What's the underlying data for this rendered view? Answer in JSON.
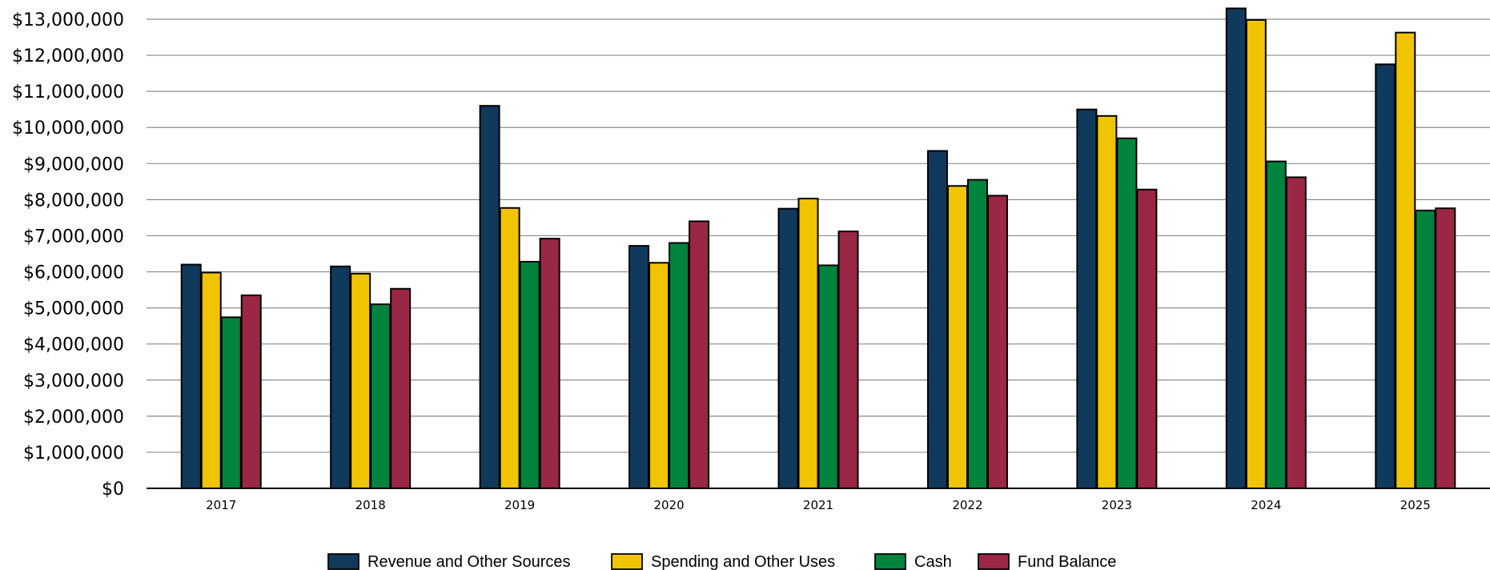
{
  "chart_data": {
    "type": "bar",
    "categories": [
      "2017",
      "2018",
      "2019",
      "2020",
      "2021",
      "2022",
      "2023",
      "2024",
      "2025"
    ],
    "series": [
      {
        "name": "Revenue and Other Sources",
        "color": "#0f3a5c",
        "values": [
          6200000,
          6150000,
          10600000,
          6720000,
          7750000,
          9350000,
          10500000,
          13300000,
          11750000
        ]
      },
      {
        "name": "Spending and Other Uses",
        "color": "#f0c400",
        "values": [
          5980000,
          5950000,
          7770000,
          6250000,
          8030000,
          8380000,
          10320000,
          12980000,
          12630000
        ]
      },
      {
        "name": "Cash",
        "color": "#00843d",
        "values": [
          4740000,
          5100000,
          6280000,
          6800000,
          6180000,
          8550000,
          9700000,
          9060000,
          7700000
        ]
      },
      {
        "name": "Fund Balance",
        "color": "#9a2743",
        "values": [
          5350000,
          5530000,
          6920000,
          7400000,
          7120000,
          8110000,
          8280000,
          8620000,
          7760000
        ]
      }
    ],
    "ylim": [
      0,
      13000000
    ],
    "yticks": [
      "$0",
      "$1,000,000",
      "$2,000,000",
      "$3,000,000",
      "$4,000,000",
      "$5,000,000",
      "$6,000,000",
      "$7,000,000",
      "$8,000,000",
      "$9,000,000",
      "$10,000,000",
      "$11,000,000",
      "$12,000,000",
      "$13,000,000"
    ],
    "grid": true,
    "legend_position": "bottom"
  }
}
